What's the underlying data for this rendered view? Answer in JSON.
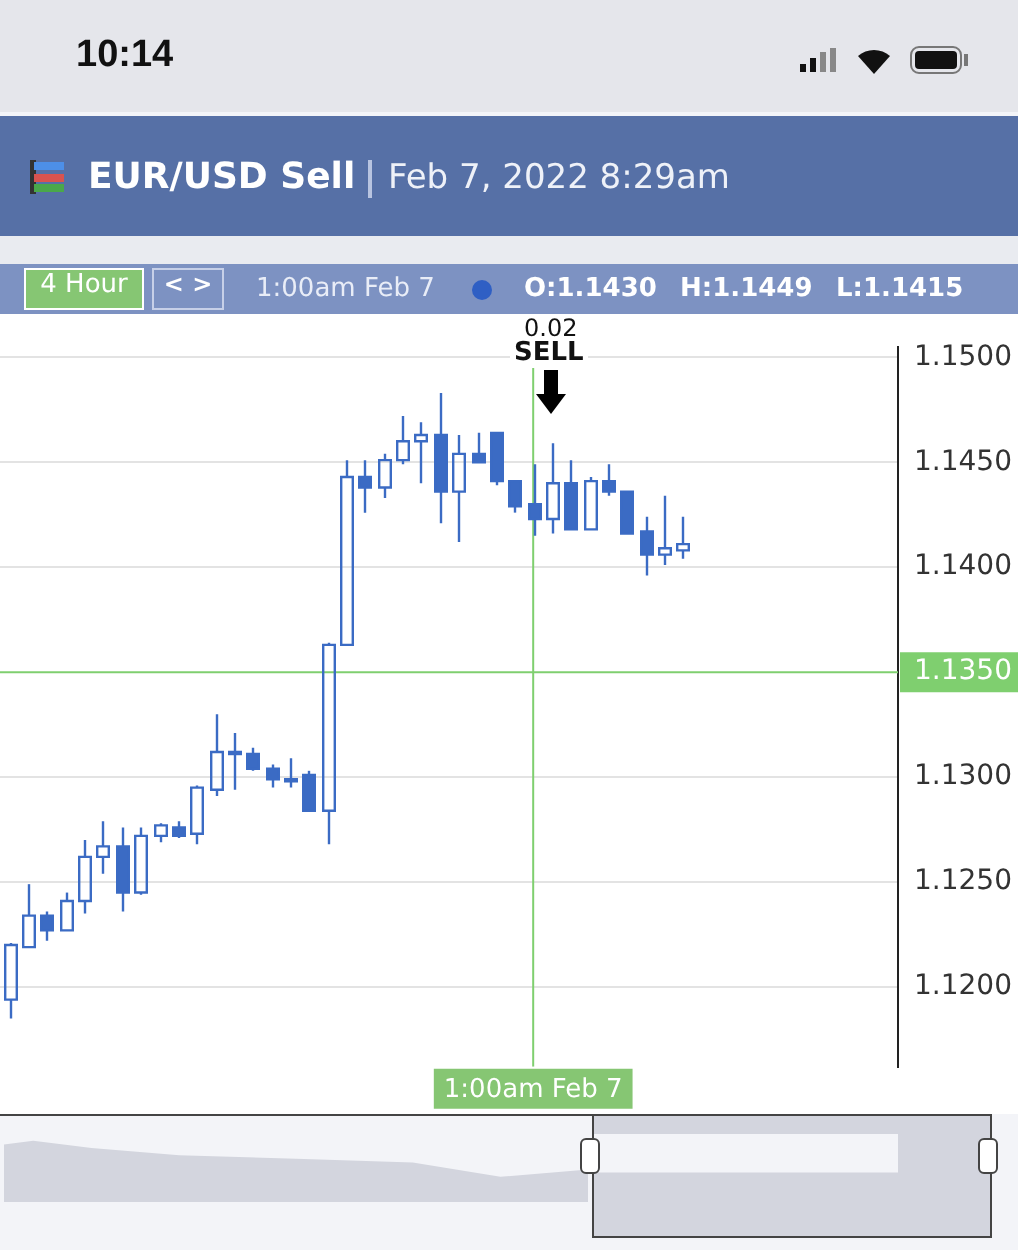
{
  "chart_data": {
    "type": "candlestick",
    "title": "EUR/USD Sell",
    "subtitle": "Feb 7, 2022 8:29am",
    "annotations": [
      "10:14",
      "4 Hour",
      "< >",
      "1:00am Feb 7",
      "O:1.1430",
      "H:1.1449",
      "L:1.1415",
      "0.02",
      "SELL"
    ],
    "categories": [
      null,
      null,
      null,
      null,
      null,
      null,
      null,
      null,
      null,
      null,
      null,
      null,
      null,
      null,
      null,
      null,
      null,
      null,
      null,
      null,
      null,
      null,
      null,
      null,
      null,
      null,
      null,
      null,
      "1:00am Feb 7",
      null,
      null,
      null,
      null,
      null,
      null,
      null,
      null,
      null,
      null,
      null,
      null,
      null,
      null,
      null,
      null,
      null,
      null,
      null
    ],
    "color": "#3b6bc4",
    "ohlc": [
      [
        1.1194,
        1.1221,
        1.1185,
        1.122
      ],
      [
        1.1219,
        1.1249,
        1.1219,
        1.1234
      ],
      [
        1.1234,
        1.1236,
        1.1222,
        1.1227
      ],
      [
        1.1227,
        1.1245,
        1.1227,
        1.1241
      ],
      [
        1.1241,
        1.127,
        1.1235,
        1.1262
      ],
      [
        1.1262,
        1.1279,
        1.1254,
        1.1267
      ],
      [
        1.1267,
        1.1276,
        1.1236,
        1.1245
      ],
      [
        1.1245,
        1.1276,
        1.1244,
        1.1272
      ],
      [
        1.1272,
        1.1278,
        1.1269,
        1.1277
      ],
      [
        1.1276,
        1.1279,
        1.1271,
        1.1272
      ],
      [
        1.1273,
        1.1296,
        1.1268,
        1.1295
      ],
      [
        1.1294,
        1.133,
        1.1291,
        1.1312
      ],
      [
        1.1312,
        1.1321,
        1.1294,
        1.1311
      ],
      [
        1.1311,
        1.1314,
        1.1303,
        1.1304
      ],
      [
        1.1304,
        1.1306,
        1.1295,
        1.1299
      ],
      [
        1.1299,
        1.1309,
        1.1295,
        1.1298
      ],
      [
        1.1301,
        1.1303,
        1.1284,
        1.1284
      ],
      [
        1.1284,
        1.1364,
        1.1268,
        1.1363
      ],
      [
        1.1363,
        1.1451,
        1.1363,
        1.1443
      ],
      [
        1.1443,
        1.1451,
        1.1426,
        1.1438
      ],
      [
        1.1438,
        1.1454,
        1.1433,
        1.1451
      ],
      [
        1.1451,
        1.1472,
        1.1449,
        1.146
      ],
      [
        1.146,
        1.1469,
        1.144,
        1.1463
      ],
      [
        1.1463,
        1.1483,
        1.1421,
        1.1436
      ],
      [
        1.1436,
        1.1463,
        1.1412,
        1.1454
      ],
      [
        1.1454,
        1.1464,
        1.145,
        1.145
      ],
      [
        1.1464,
        1.1464,
        1.1439,
        1.1441
      ],
      [
        1.1441,
        1.1441,
        1.1426,
        1.1429
      ],
      [
        1.143,
        1.1449,
        1.1415,
        1.1423
      ],
      [
        1.1423,
        1.1459,
        1.1416,
        1.144
      ],
      [
        1.144,
        1.1451,
        1.1418,
        1.1418
      ],
      [
        1.1418,
        1.1443,
        1.1418,
        1.1441
      ],
      [
        1.1441,
        1.1449,
        1.1434,
        1.1436
      ],
      [
        1.1436,
        1.1436,
        1.1416,
        1.1416
      ],
      [
        1.1417,
        1.1424,
        1.1396,
        1.1406
      ],
      [
        1.1406,
        1.1434,
        1.1401,
        1.1409
      ],
      [
        1.1408,
        1.1424,
        1.1404,
        1.1411
      ],
      null,
      null,
      null,
      null,
      null,
      null,
      null,
      null,
      null,
      null,
      null
    ],
    "ylim": [
      1.1162,
      1.1505
    ],
    "yticks": [
      {
        "value": 1.12,
        "label": "1.1200"
      },
      {
        "value": 1.125,
        "label": "1.1250"
      },
      {
        "value": 1.13,
        "label": "1.1300"
      },
      {
        "value": 1.14,
        "label": "1.1400"
      },
      {
        "value": 1.145,
        "label": "1.1450"
      },
      {
        "value": 1.15,
        "label": "1.1500"
      }
    ],
    "ref_lines": [
      {
        "axis": "y",
        "value": 1.135,
        "label": "1.1350",
        "color": "#7fcf6f"
      },
      {
        "axis": "x",
        "value": "1:00am Feb 7",
        "color": "#7fcf6f"
      }
    ],
    "grid": "y"
  }
}
